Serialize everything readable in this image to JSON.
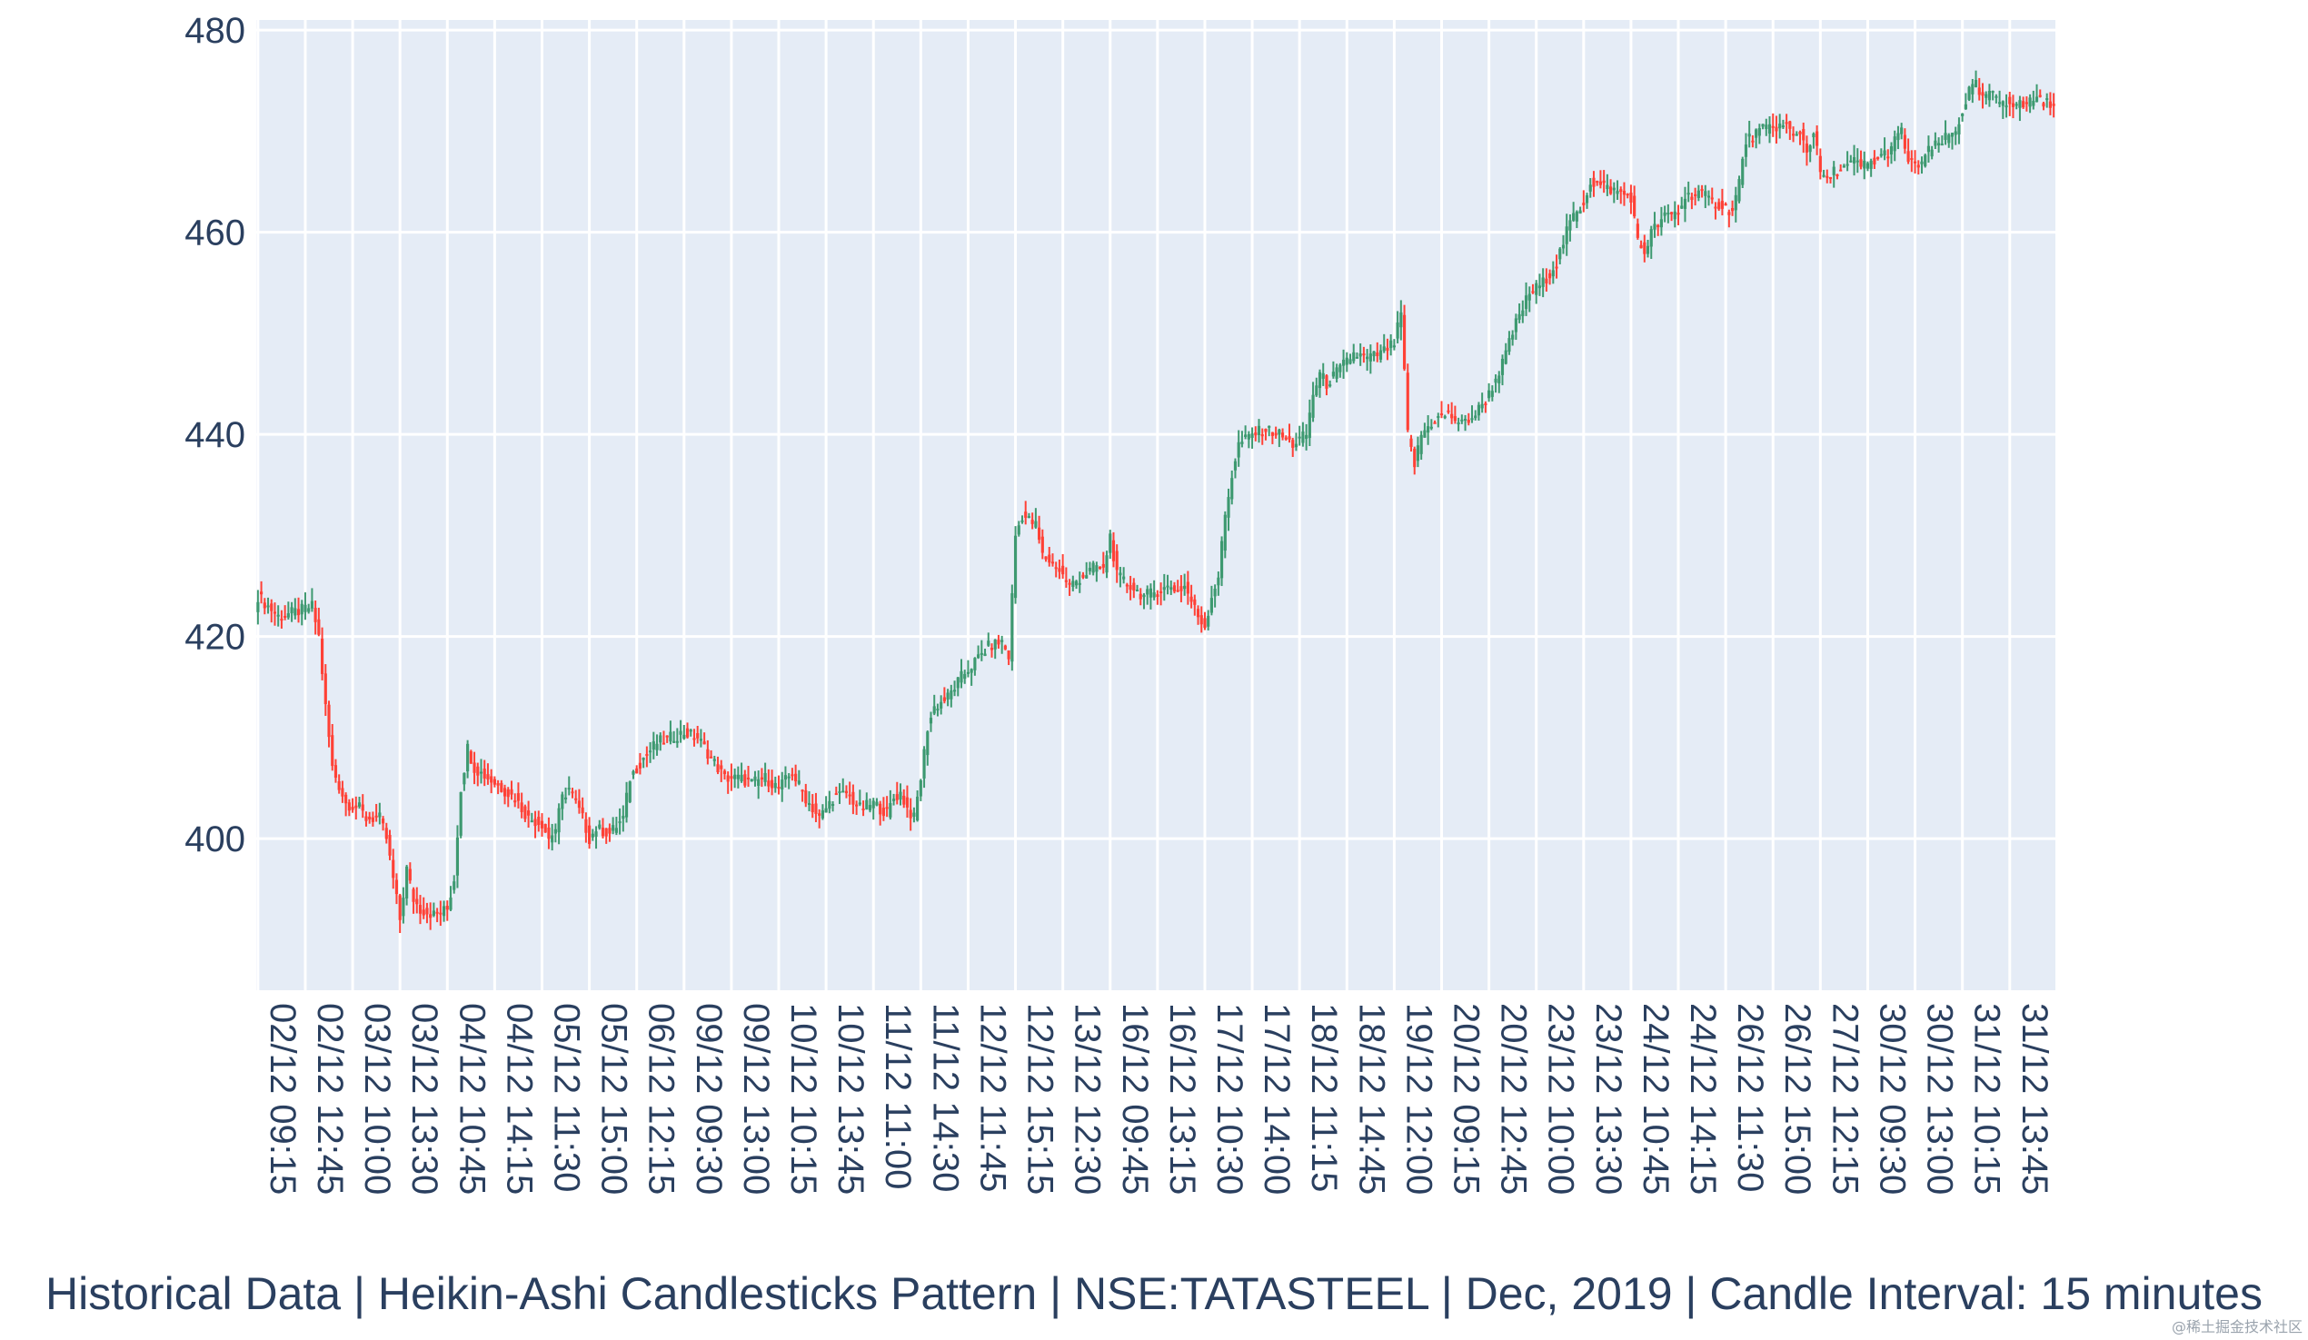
{
  "chart_data": {
    "type": "candlestick",
    "title": "Historical Data | Heikin-Ashi Candlesticks Pattern | NSE:TATASTEEL | Dec, 2019 | Candle Interval: 15 minutes",
    "xlabel": "",
    "ylabel": "",
    "ylim": [
      385,
      481
    ],
    "yticks": [
      400,
      420,
      440,
      460,
      480
    ],
    "grid": true,
    "legend": "none",
    "colors": {
      "increasing": "#3d9970",
      "decreasing": "#ff4136",
      "plot_bg": "#e5ecf6",
      "grid": "#ffffff",
      "text": "#2a3f5f"
    },
    "x_tick_labels": [
      "02/12 09:15",
      "02/12 12:45",
      "03/12 10:00",
      "03/12 13:30",
      "04/12 10:45",
      "04/12 14:15",
      "05/12 11:30",
      "05/12 15:00",
      "06/12 12:15",
      "09/12 09:30",
      "09/12 13:00",
      "10/12 10:15",
      "10/12 13:45",
      "11/12 11:00",
      "11/12 14:30",
      "12/12 11:45",
      "12/12 15:15",
      "13/12 12:30",
      "16/12 09:45",
      "16/12 13:15",
      "17/12 10:30",
      "17/12 14:00",
      "18/12 11:15",
      "18/12 14:45",
      "19/12 12:00",
      "20/12 09:15",
      "20/12 12:45",
      "23/12 10:00",
      "23/12 13:30",
      "24/12 10:45",
      "24/12 14:15",
      "26/12 11:30",
      "26/12 15:00",
      "27/12 12:15",
      "30/12 09:30",
      "30/12 13:00",
      "31/12 10:15",
      "31/12 13:45"
    ],
    "candles_per_tick": 14,
    "close_path": [
      [
        0,
        424
      ],
      [
        6,
        422
      ],
      [
        12,
        422.5
      ],
      [
        16,
        423
      ],
      [
        18,
        420
      ],
      [
        20,
        413
      ],
      [
        22,
        407
      ],
      [
        26,
        403.5
      ],
      [
        30,
        403
      ],
      [
        32,
        402
      ],
      [
        36,
        402
      ],
      [
        38,
        400
      ],
      [
        40,
        396
      ],
      [
        42,
        392
      ],
      [
        44,
        397
      ],
      [
        46,
        394
      ],
      [
        48,
        393
      ],
      [
        52,
        392.5
      ],
      [
        56,
        393
      ],
      [
        58,
        396
      ],
      [
        60,
        405
      ],
      [
        62,
        409
      ],
      [
        64,
        407
      ],
      [
        68,
        406
      ],
      [
        72,
        405
      ],
      [
        76,
        404
      ],
      [
        80,
        402
      ],
      [
        84,
        401.5
      ],
      [
        86,
        400
      ],
      [
        88,
        401
      ],
      [
        90,
        404
      ],
      [
        92,
        405
      ],
      [
        96,
        402
      ],
      [
        98,
        400
      ],
      [
        100,
        401
      ],
      [
        104,
        400.5
      ],
      [
        108,
        402
      ],
      [
        110,
        406
      ],
      [
        114,
        408
      ],
      [
        118,
        409.5
      ],
      [
        122,
        410
      ],
      [
        126,
        410.5
      ],
      [
        130,
        410
      ],
      [
        134,
        408
      ],
      [
        138,
        406
      ],
      [
        142,
        406
      ],
      [
        146,
        405.5
      ],
      [
        150,
        406
      ],
      [
        154,
        405
      ],
      [
        158,
        406.5
      ],
      [
        162,
        404
      ],
      [
        166,
        402
      ],
      [
        170,
        404
      ],
      [
        174,
        404.5
      ],
      [
        178,
        403
      ],
      [
        182,
        403.5
      ],
      [
        186,
        402.5
      ],
      [
        188,
        404
      ],
      [
        190,
        404.5
      ],
      [
        192,
        403
      ],
      [
        194,
        402
      ],
      [
        196,
        406
      ],
      [
        198,
        411
      ],
      [
        200,
        413
      ],
      [
        204,
        414
      ],
      [
        208,
        416
      ],
      [
        212,
        417.5
      ],
      [
        216,
        419
      ],
      [
        220,
        419.5
      ],
      [
        222,
        418
      ],
      [
        224,
        430
      ],
      [
        226,
        432
      ],
      [
        230,
        431
      ],
      [
        232,
        428
      ],
      [
        236,
        427
      ],
      [
        240,
        425
      ],
      [
        244,
        426
      ],
      [
        248,
        427
      ],
      [
        250,
        426.5
      ],
      [
        252,
        430
      ],
      [
        254,
        426
      ],
      [
        258,
        425
      ],
      [
        262,
        424
      ],
      [
        266,
        424.5
      ],
      [
        270,
        425
      ],
      [
        272,
        424.5
      ],
      [
        274,
        425
      ],
      [
        276,
        423.5
      ],
      [
        278,
        422
      ],
      [
        280,
        421
      ],
      [
        282,
        424
      ],
      [
        284,
        426
      ],
      [
        286,
        432
      ],
      [
        288,
        436
      ],
      [
        290,
        439
      ],
      [
        294,
        440
      ],
      [
        298,
        440.5
      ],
      [
        302,
        440
      ],
      [
        306,
        439
      ],
      [
        308,
        439.5
      ],
      [
        310,
        440
      ],
      [
        312,
        444
      ],
      [
        314,
        446
      ],
      [
        316,
        445
      ],
      [
        320,
        446.5
      ],
      [
        324,
        448
      ],
      [
        328,
        447.5
      ],
      [
        332,
        448
      ],
      [
        336,
        449
      ],
      [
        338,
        452
      ],
      [
        340,
        440
      ],
      [
        342,
        437
      ],
      [
        344,
        440
      ],
      [
        348,
        441.5
      ],
      [
        352,
        442
      ],
      [
        356,
        441
      ],
      [
        360,
        442
      ],
      [
        364,
        444
      ],
      [
        368,
        447
      ],
      [
        372,
        451
      ],
      [
        376,
        454
      ],
      [
        380,
        455
      ],
      [
        384,
        457
      ],
      [
        388,
        461
      ],
      [
        392,
        463
      ],
      [
        394,
        465
      ],
      [
        398,
        464.5
      ],
      [
        402,
        464
      ],
      [
        406,
        463.5
      ],
      [
        408,
        459
      ],
      [
        410,
        458
      ],
      [
        412,
        460
      ],
      [
        416,
        461.5
      ],
      [
        420,
        462
      ],
      [
        422,
        463.5
      ],
      [
        426,
        464
      ],
      [
        430,
        463
      ],
      [
        434,
        462.5
      ],
      [
        436,
        462
      ],
      [
        438,
        465
      ],
      [
        440,
        469
      ],
      [
        444,
        470
      ],
      [
        448,
        470.5
      ],
      [
        452,
        470.5
      ],
      [
        454,
        469.5
      ],
      [
        456,
        470
      ],
      [
        458,
        468
      ],
      [
        460,
        470
      ],
      [
        462,
        466
      ],
      [
        464,
        465
      ],
      [
        466,
        466
      ],
      [
        470,
        466.5
      ],
      [
        472,
        467
      ],
      [
        474,
        466.5
      ],
      [
        478,
        467
      ],
      [
        482,
        468
      ],
      [
        484,
        469
      ],
      [
        486,
        470
      ],
      [
        488,
        467
      ],
      [
        490,
        466.5
      ],
      [
        492,
        467
      ],
      [
        494,
        468
      ],
      [
        498,
        469
      ],
      [
        502,
        470
      ],
      [
        504,
        472
      ],
      [
        506,
        474
      ],
      [
        508,
        474.5
      ],
      [
        510,
        473
      ],
      [
        512,
        474
      ],
      [
        514,
        473
      ],
      [
        518,
        473
      ],
      [
        522,
        472.5
      ],
      [
        526,
        473.5
      ],
      [
        528,
        473
      ],
      [
        530,
        472.5
      ],
      [
        531,
        472
      ]
    ]
  }
}
